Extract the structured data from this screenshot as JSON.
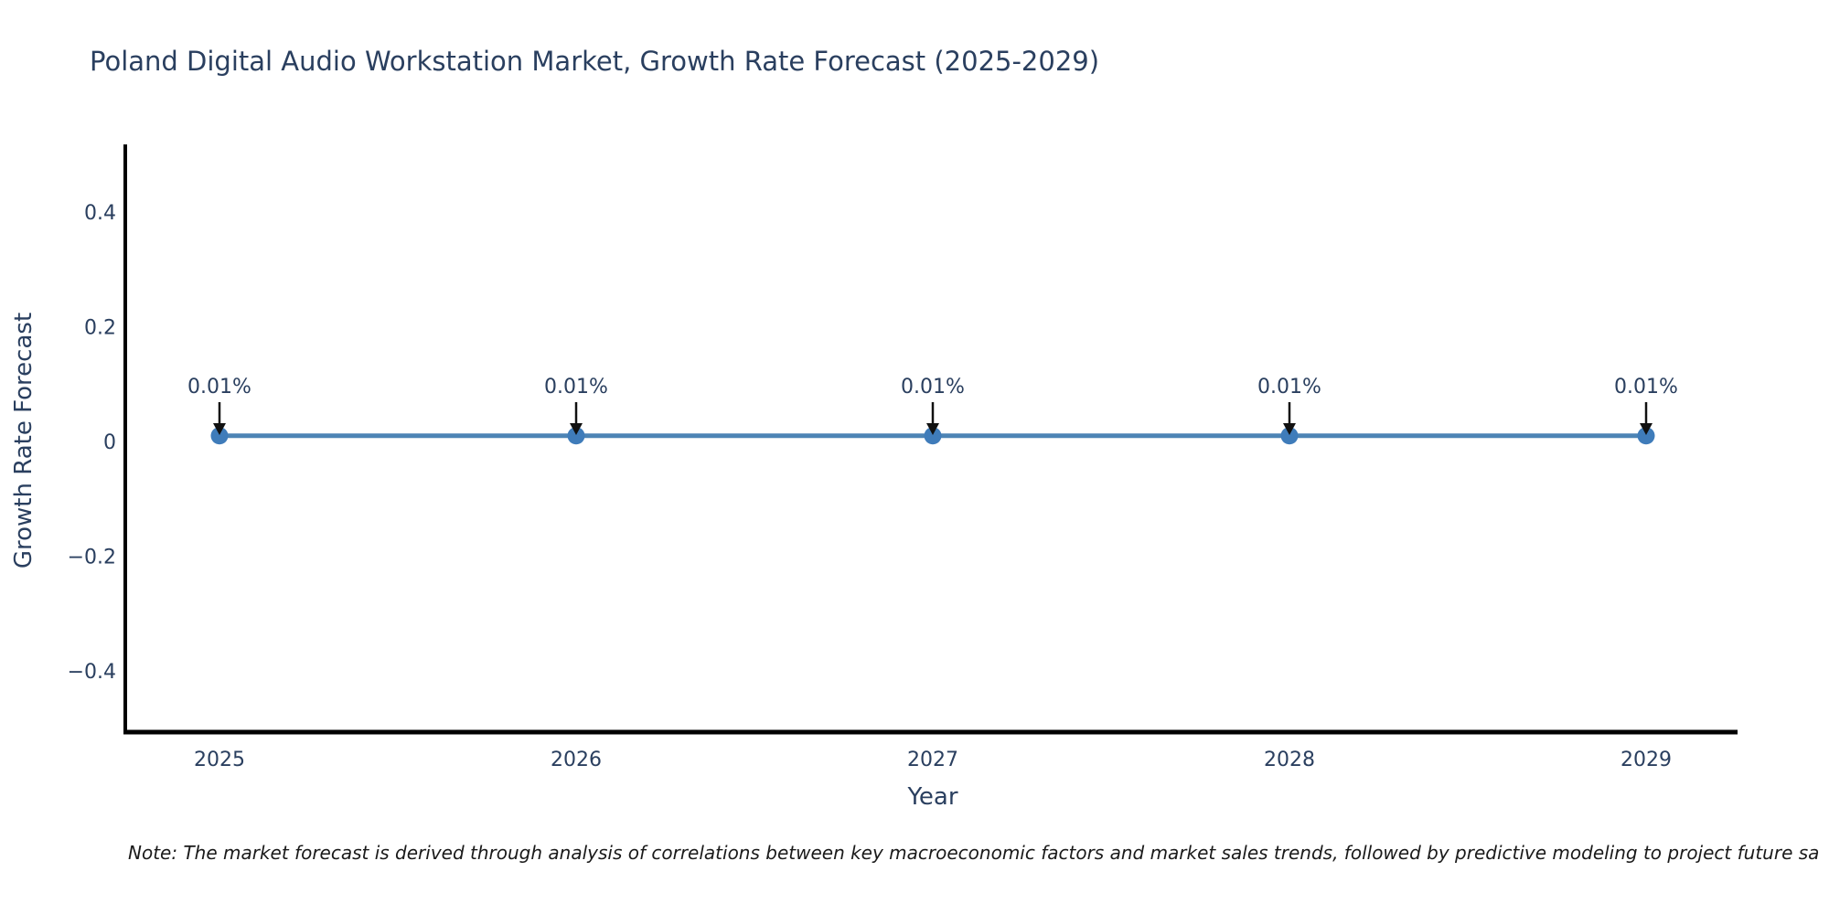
{
  "page": {
    "background": "#ffffff"
  },
  "chart_data": {
    "type": "line",
    "title": "Poland Digital Audio Workstation Market, Growth Rate Forecast (2025-2029)",
    "xlabel": "Year",
    "ylabel": "Growth Rate Forecast",
    "categories": [
      "2025",
      "2026",
      "2027",
      "2028",
      "2029"
    ],
    "series": [
      {
        "name": "Growth Rate Forecast",
        "values": [
          0.01,
          0.01,
          0.01,
          0.01,
          0.01
        ],
        "unit": "%"
      }
    ],
    "point_labels": [
      "0.01%",
      "0.01%",
      "0.01%",
      "0.01%",
      "0.01%"
    ],
    "ytick_labels": [
      "0.4",
      "0.2",
      "0",
      "−0.2",
      "−0.4"
    ],
    "ytick_values": [
      0.4,
      0.2,
      0,
      -0.2,
      -0.4
    ],
    "ylim": [
      -0.51,
      0.52
    ],
    "grid": false,
    "legend": false,
    "annotations_arrow": true,
    "colors": {
      "line": "#4d84b5",
      "marker": "#3f7cba",
      "arrow": "#111111",
      "axis": "#000000",
      "text": "#2a3f5f"
    }
  },
  "footnote": {
    "text": "Note: The market forecast is derived through analysis of correlations between key macroeconomic factors and market sales trends, followed by predictive modeling to project future sa"
  }
}
